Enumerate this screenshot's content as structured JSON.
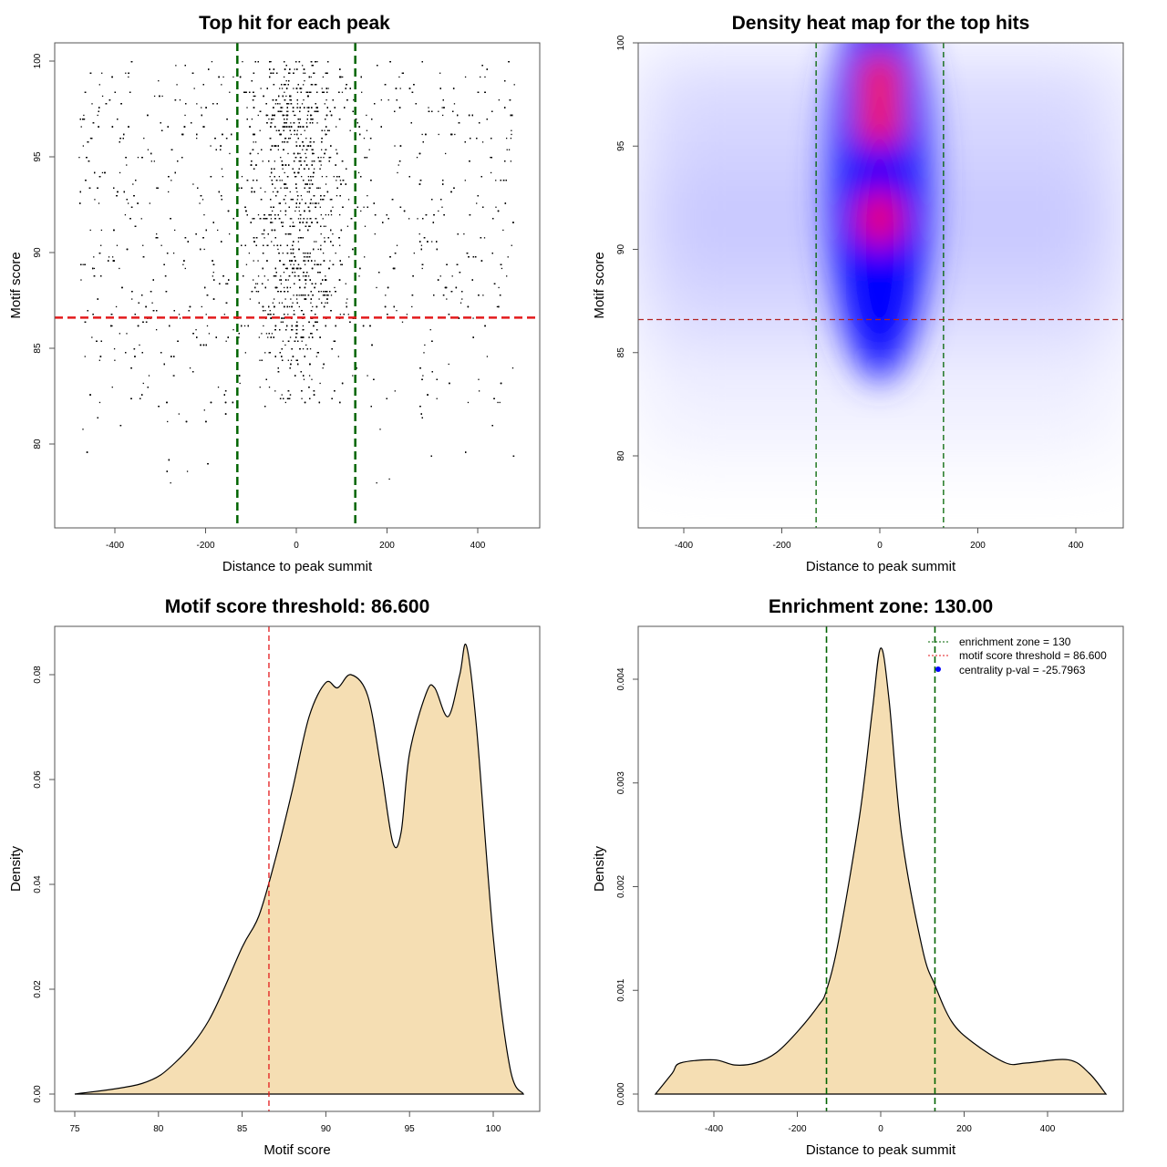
{
  "chart_data": [
    {
      "type": "scatter",
      "title": "Top hit for each peak",
      "xlabel": "Distance to peak summit",
      "ylabel": "Motif score",
      "xlim": [
        -500,
        500
      ],
      "ylim": [
        76,
        101
      ],
      "xticks": [
        -400,
        -200,
        0,
        200,
        400
      ],
      "yticks": [
        80,
        85,
        90,
        95,
        100
      ],
      "vlines": {
        "values": [
          -130,
          130
        ],
        "color": "#006400"
      },
      "hline": {
        "value": 86.6,
        "color": "#e31a1c"
      }
    },
    {
      "type": "heatmap",
      "title": "Density heat map for the top hits",
      "xlabel": "Distance to peak summit",
      "ylabel": "Motif score",
      "xlim": [
        -500,
        500
      ],
      "ylim": [
        76,
        100
      ],
      "xticks": [
        -400,
        -200,
        0,
        200,
        400
      ],
      "yticks": [
        80,
        85,
        90,
        95,
        100
      ],
      "colors": [
        "#ffffff",
        "#0000ff",
        "#ff0000"
      ],
      "hot_spots": [
        {
          "x": 0,
          "y": 98.2
        },
        {
          "x": 0,
          "y": 96.2
        },
        {
          "x": 0,
          "y": 91.5
        }
      ],
      "vlines": {
        "values": [
          -130,
          130
        ],
        "color": "#006400"
      },
      "hline": {
        "value": 86.6,
        "color": "#b22222"
      }
    },
    {
      "type": "area",
      "title": "Motif score threshold: 86.600",
      "xlabel": "Motif score",
      "ylabel": "Density",
      "xticks": [
        75,
        80,
        85,
        90,
        95,
        100
      ],
      "yticks": [
        "0.00",
        "0.02",
        "0.04",
        "0.06",
        "0.08"
      ],
      "fill": "#f5deb3",
      "vline": {
        "value": 86.6,
        "color": "#e31a1c"
      },
      "x": [
        75,
        79,
        81,
        83,
        85,
        86,
        87,
        88,
        89,
        90,
        90.7,
        91.5,
        92.5,
        93.3,
        94,
        94.5,
        95,
        96,
        96.5,
        97.3,
        98,
        98.4,
        99,
        100,
        101,
        101.8
      ],
      "y": [
        0,
        0.002,
        0.006,
        0.014,
        0.028,
        0.034,
        0.045,
        0.058,
        0.072,
        0.0785,
        0.0775,
        0.08,
        0.076,
        0.062,
        0.048,
        0.05,
        0.065,
        0.0765,
        0.0775,
        0.072,
        0.08,
        0.0855,
        0.07,
        0.03,
        0.005,
        0
      ]
    },
    {
      "type": "area",
      "title": "Enrichment zone: 130.00",
      "xlabel": "Distance to peak summit",
      "ylabel": "Density",
      "xticks": [
        -400,
        -200,
        0,
        200,
        400
      ],
      "yticks": [
        "0.000",
        "0.001",
        "0.002",
        "0.003",
        "0.004"
      ],
      "fill": "#f5deb3",
      "vlines": {
        "values": [
          -130,
          130
        ],
        "color": "#006400"
      },
      "legend": {
        "position": "top-right",
        "entries": [
          "enrichment zone = 130",
          "motif score threshold = 86.600",
          "centrality p-val = -25.7963"
        ]
      },
      "x": [
        -540,
        -500,
        -480,
        -400,
        -350,
        -300,
        -250,
        -200,
        -150,
        -130,
        -100,
        -50,
        -20,
        0,
        20,
        50,
        100,
        130,
        170,
        220,
        300,
        350,
        450,
        500,
        540
      ],
      "y": [
        0,
        0.0002,
        0.0003,
        0.00033,
        0.00028,
        0.0003,
        0.0004,
        0.0006,
        0.00085,
        0.001,
        0.0015,
        0.0027,
        0.0037,
        0.0043,
        0.0038,
        0.0025,
        0.0014,
        0.00105,
        0.0007,
        0.0005,
        0.0003,
        0.0003,
        0.00033,
        0.0002,
        0
      ]
    }
  ]
}
